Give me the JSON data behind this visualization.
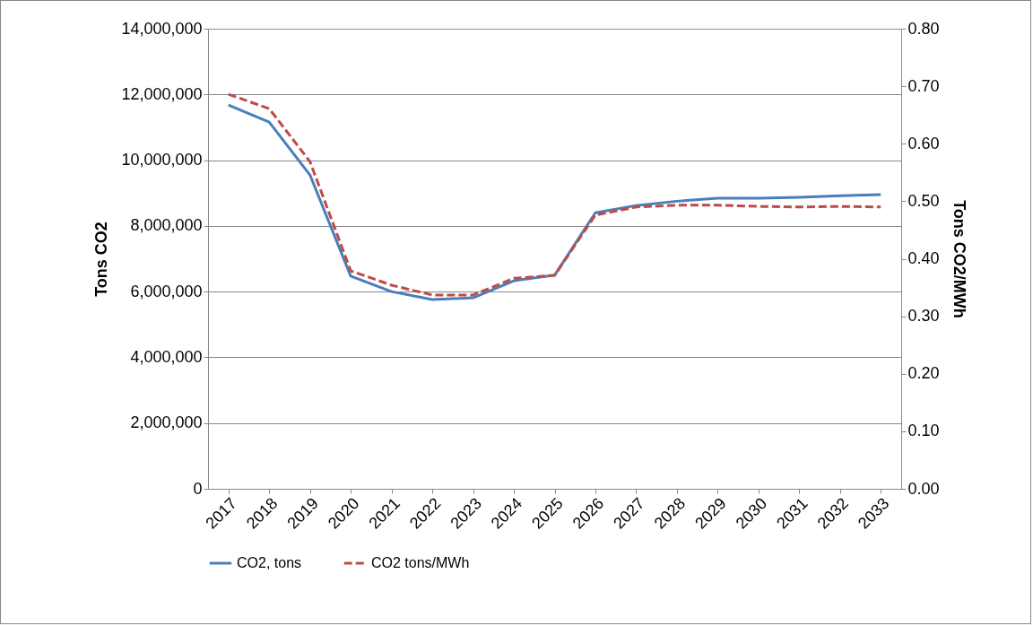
{
  "chart_data": {
    "type": "line",
    "ylabel": "Tons CO2",
    "y2label": "Tons CO2/MWh",
    "categories": [
      "2017",
      "2018",
      "2019",
      "2020",
      "2021",
      "2022",
      "2023",
      "2024",
      "2025",
      "2026",
      "2027",
      "2028",
      "2029",
      "2030",
      "2031",
      "2032",
      "2033"
    ],
    "series": [
      {
        "name": "CO2, tons",
        "color": "#4a7ebb",
        "line_style": "solid",
        "values": [
          11680000,
          11160000,
          9550000,
          6470000,
          6000000,
          5760000,
          5810000,
          6330000,
          6500000,
          8400000,
          8620000,
          8750000,
          8840000,
          8840000,
          8870000,
          8920000,
          8950000
        ]
      },
      {
        "name": "CO2 tons/MWh",
        "color": "#be4b48",
        "line_style": "dashed",
        "axis": "y2",
        "values": [
          0.686,
          0.661,
          0.569,
          0.379,
          0.354,
          0.337,
          0.337,
          0.366,
          0.371,
          0.476,
          0.49,
          0.493,
          0.493,
          0.491,
          0.49,
          0.491,
          0.49
        ]
      }
    ],
    "ylim": [
      0,
      14000000
    ],
    "yticks": [
      {
        "value": 0,
        "label": "0"
      },
      {
        "value": 2000000,
        "label": "2,000,000"
      },
      {
        "value": 4000000,
        "label": "4,000,000"
      },
      {
        "value": 6000000,
        "label": "6,000,000"
      },
      {
        "value": 8000000,
        "label": "8,000,000"
      },
      {
        "value": 10000000,
        "label": "10,000,000"
      },
      {
        "value": 12000000,
        "label": "12,000,000"
      },
      {
        "value": 14000000,
        "label": "14,000,000"
      }
    ],
    "y2lim": [
      0,
      0.8
    ],
    "y2ticks": [
      {
        "value": 0,
        "label": "0.00"
      },
      {
        "value": 0.1,
        "label": "0.10"
      },
      {
        "value": 0.2,
        "label": "0.20"
      },
      {
        "value": 0.3,
        "label": "0.30"
      },
      {
        "value": 0.4,
        "label": "0.40"
      },
      {
        "value": 0.5,
        "label": "0.50"
      },
      {
        "value": 0.6,
        "label": "0.60"
      },
      {
        "value": 0.7,
        "label": "0.70"
      },
      {
        "value": 0.8,
        "label": "0.80"
      }
    ],
    "grid": "y",
    "legend": "bottom",
    "marker": "none"
  }
}
